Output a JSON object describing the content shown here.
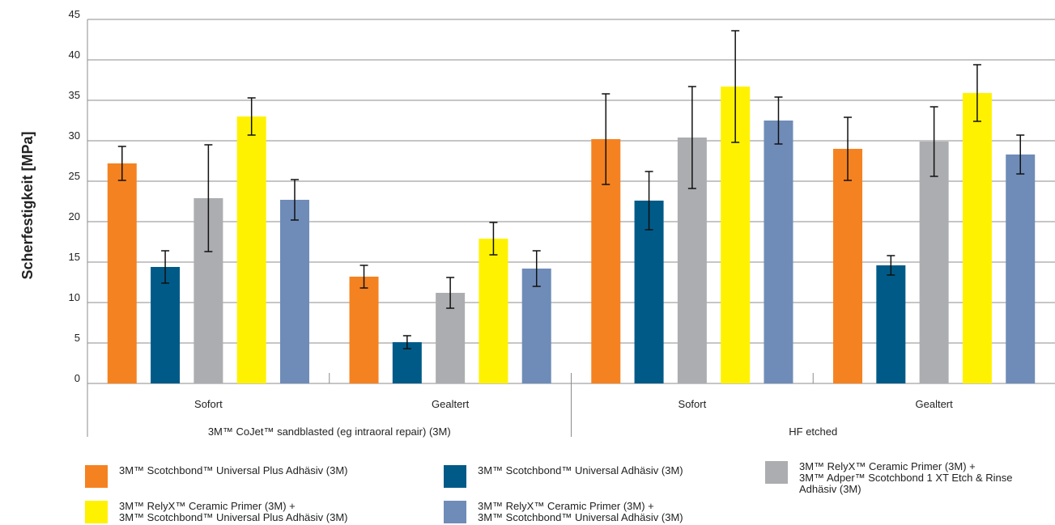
{
  "chart_data": {
    "type": "bar",
    "ylabel": "Scherfestigkeit [MPa]",
    "ylim": [
      0,
      45
    ],
    "yticks": [
      "0",
      "5",
      "10",
      "15",
      "20",
      "25",
      "30",
      "35",
      "40",
      "45"
    ],
    "grid": true,
    "legend_position": "bottom",
    "groups": [
      {
        "label": "3M™ CoJet™ sandblasted (eg intraoral repair) (3M)",
        "subgroups": [
          "Sofort",
          "Gealtert"
        ]
      },
      {
        "label": "HF etched",
        "subgroups": [
          "Sofort",
          "Gealtert"
        ]
      }
    ],
    "categories": [
      "3M™ CoJet™ sandblasted (eg intraoral repair) (3M) / Sofort",
      "3M™ CoJet™ sandblasted (eg intraoral repair) (3M) / Gealtert",
      "HF etched / Sofort",
      "HF etched / Gealtert"
    ],
    "series": [
      {
        "name": "3M™ Scotchbond™ Universal Plus Adhäsiv (3M)",
        "color": "#f58220",
        "values": [
          27.2,
          13.2,
          30.2,
          29.0
        ],
        "errors": [
          2.1,
          1.4,
          5.6,
          3.9
        ]
      },
      {
        "name": "3M™ Scotchbond™ Universal Adhäsiv (3M)",
        "color": "#005a87",
        "values": [
          14.4,
          5.1,
          22.6,
          14.6
        ],
        "errors": [
          2.0,
          0.8,
          3.6,
          1.2
        ]
      },
      {
        "name": "3M™ RelyX™ Ceramic Primer (3M) +\n3M™ Adper™ Scotchbond 1 XT Etch & Rinse\nAdhäsiv (3M)",
        "color": "#acadb0",
        "values": [
          22.9,
          11.2,
          30.4,
          29.9
        ],
        "errors": [
          6.6,
          1.9,
          6.3,
          4.3
        ]
      },
      {
        "name": "3M™ RelyX™ Ceramic Primer (3M) +\n3M™ Scotchbond™ Universal Plus Adhäsiv (3M)",
        "color": "#fff200",
        "values": [
          33.0,
          17.9,
          36.7,
          35.9
        ],
        "errors": [
          2.3,
          2.0,
          6.9,
          3.5
        ]
      },
      {
        "name": "3M™ RelyX™ Ceramic Primer (3M) +\n3M™ Scotchbond™ Universal Adhäsiv (3M)",
        "color": "#6f8cb8",
        "values": [
          22.7,
          14.2,
          32.5,
          28.3
        ],
        "errors": [
          2.5,
          2.2,
          2.9,
          2.4
        ]
      }
    ]
  }
}
